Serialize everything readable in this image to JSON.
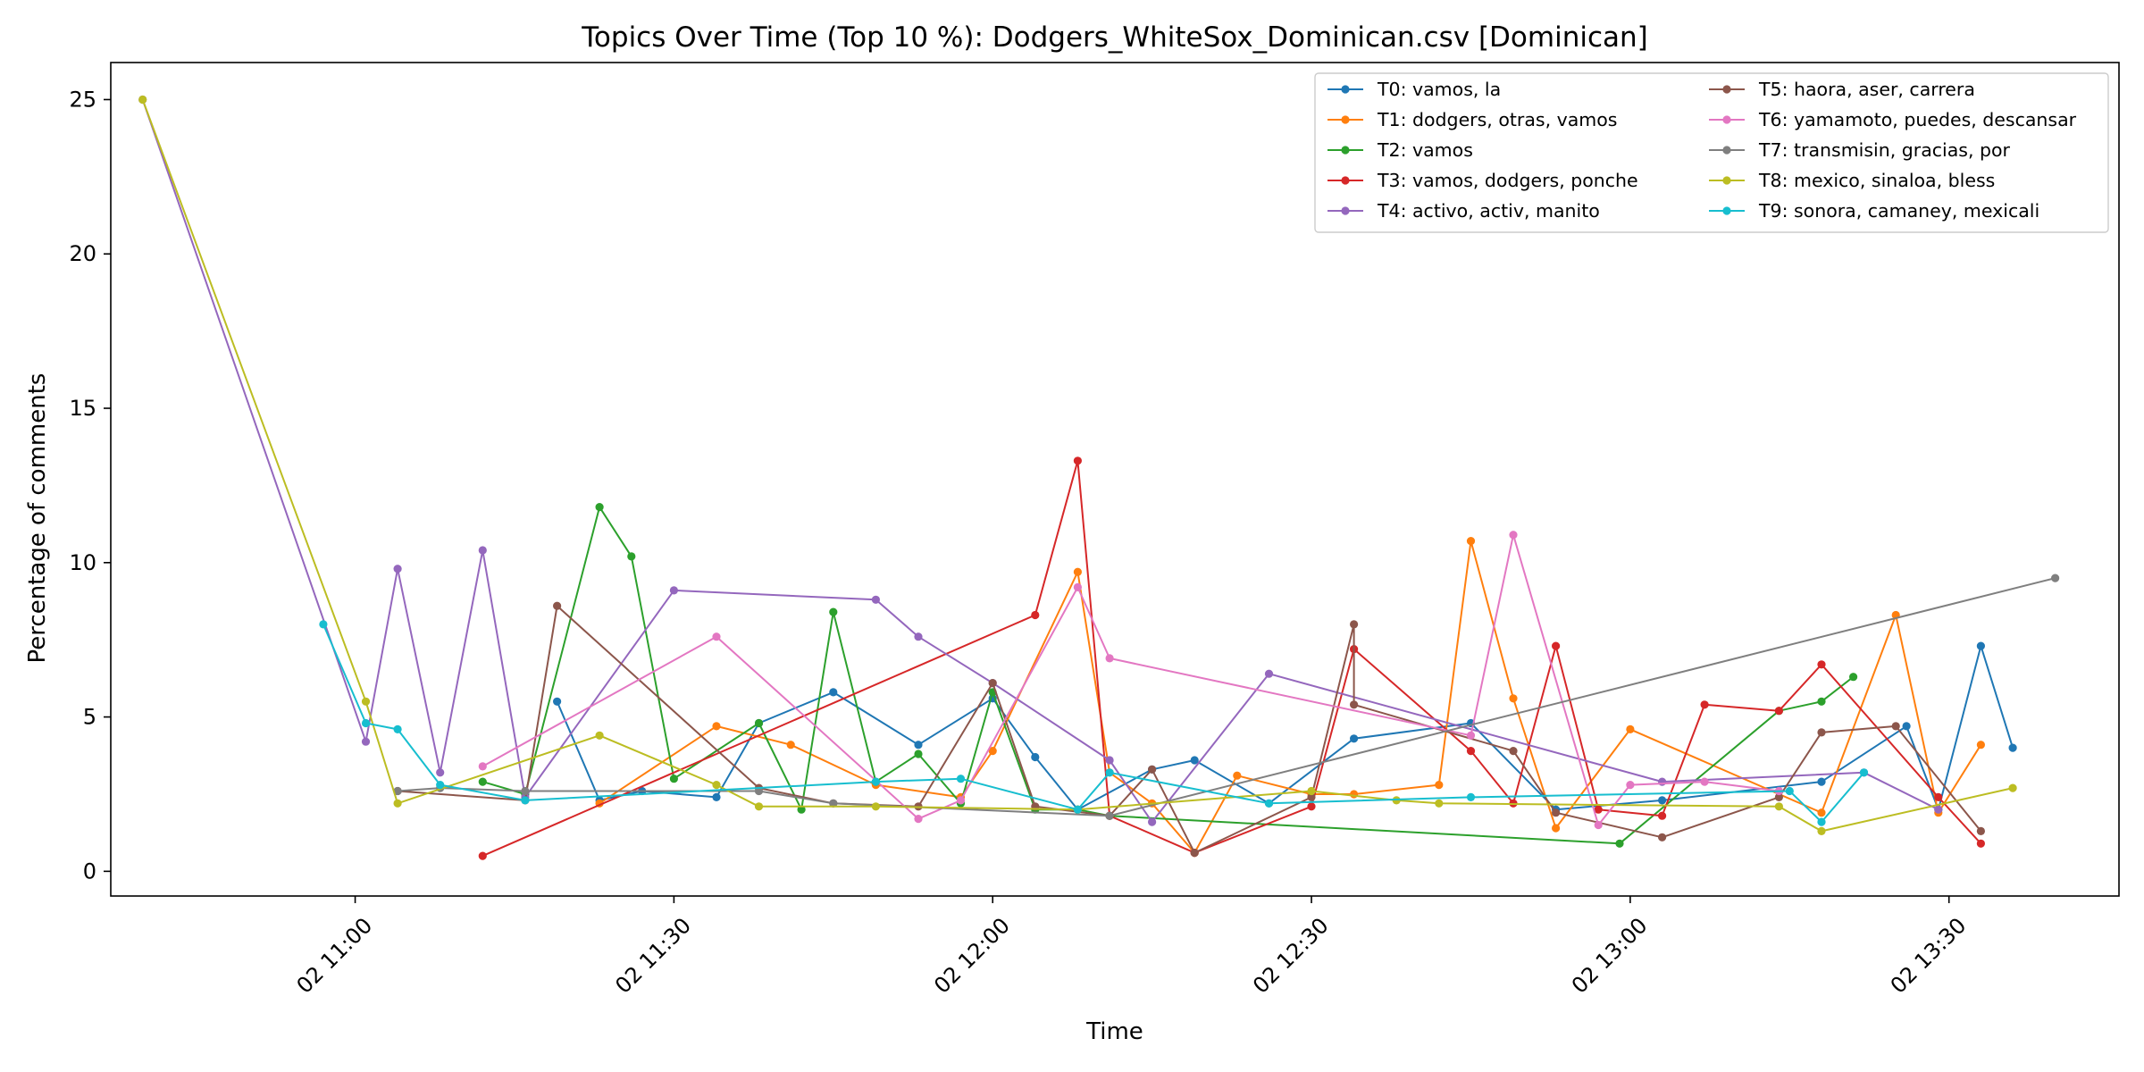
{
  "chart_data": {
    "type": "line",
    "title": "Topics Over Time (Top 10 %): Dodgers_WhiteSox_Dominican.csv [Dominican]",
    "xlabel": "Time",
    "ylabel": "Percentage of comments",
    "xlim": [
      "10:37",
      "13:46"
    ],
    "ylim": [
      -0.8,
      26.2
    ],
    "x_ticks": [
      {
        "t": "11:00",
        "label": "02 11:00"
      },
      {
        "t": "11:30",
        "label": "02 11:30"
      },
      {
        "t": "12:00",
        "label": "02 12:00"
      },
      {
        "t": "12:30",
        "label": "02 12:30"
      },
      {
        "t": "13:00",
        "label": "02 13:00"
      },
      {
        "t": "13:30",
        "label": "02 13:30"
      }
    ],
    "y_ticks": [
      0,
      5,
      10,
      15,
      20,
      25
    ],
    "grid": false,
    "legend": {
      "position": "top-right",
      "columns": 2
    },
    "series": [
      {
        "name": "T0: vamos, la",
        "color": "#1f77b4",
        "points": [
          [
            "11:19",
            5.5
          ],
          [
            "11:23",
            2.3
          ],
          [
            "11:27",
            2.6
          ],
          [
            "11:34",
            2.4
          ],
          [
            "11:38",
            4.8
          ],
          [
            "11:45",
            5.8
          ],
          [
            "11:53",
            4.1
          ],
          [
            "12:00",
            5.6
          ],
          [
            "12:04",
            3.7
          ],
          [
            "12:08",
            2.0
          ],
          [
            "12:15",
            3.3
          ],
          [
            "12:19",
            3.6
          ],
          [
            "12:26",
            2.2
          ],
          [
            "12:34",
            4.3
          ],
          [
            "12:45",
            4.8
          ],
          [
            "12:53",
            2.0
          ],
          [
            "13:03",
            2.3
          ],
          [
            "13:18",
            2.9
          ],
          [
            "13:26",
            4.7
          ],
          [
            "13:29",
            2.0
          ],
          [
            "13:33",
            7.3
          ],
          [
            "13:36",
            4.0
          ]
        ]
      },
      {
        "name": "T1: dodgers, otras, vamos",
        "color": "#ff7f0e",
        "points": [
          [
            "11:23",
            2.2
          ],
          [
            "11:34",
            4.7
          ],
          [
            "11:41",
            4.1
          ],
          [
            "11:49",
            2.8
          ],
          [
            "11:57",
            2.4
          ],
          [
            "12:00",
            3.9
          ],
          [
            "12:08",
            9.7
          ],
          [
            "12:11",
            3.2
          ],
          [
            "12:15",
            2.2
          ],
          [
            "12:19",
            0.6
          ],
          [
            "12:23",
            3.1
          ],
          [
            "12:30",
            2.5
          ],
          [
            "12:34",
            2.5
          ],
          [
            "12:42",
            2.8
          ],
          [
            "12:45",
            10.7
          ],
          [
            "12:49",
            5.6
          ],
          [
            "12:53",
            1.4
          ],
          [
            "13:00",
            4.6
          ],
          [
            "13:18",
            1.9
          ],
          [
            "13:25",
            8.3
          ],
          [
            "13:29",
            1.9
          ],
          [
            "13:33",
            4.1
          ]
        ]
      },
      {
        "name": "T2: vamos",
        "color": "#2ca02c",
        "points": [
          [
            "11:12",
            2.9
          ],
          [
            "11:16",
            2.5
          ],
          [
            "11:23",
            11.8
          ],
          [
            "11:26",
            10.2
          ],
          [
            "11:30",
            3.0
          ],
          [
            "11:38",
            4.8
          ],
          [
            "11:42",
            2.0
          ],
          [
            "11:45",
            8.4
          ],
          [
            "11:49",
            2.9
          ],
          [
            "11:53",
            3.8
          ],
          [
            "11:57",
            2.2
          ],
          [
            "12:00",
            5.8
          ],
          [
            "12:04",
            2.0
          ],
          [
            "12:08",
            2.0
          ],
          [
            "12:11",
            1.8
          ],
          [
            "12:59",
            0.9
          ],
          [
            "13:14",
            5.2
          ],
          [
            "13:18",
            5.5
          ],
          [
            "13:21",
            6.3
          ]
        ]
      },
      {
        "name": "T3: vamos, dodgers, ponche",
        "color": "#d62728",
        "points": [
          [
            "11:12",
            0.5
          ],
          [
            "12:04",
            8.3
          ],
          [
            "12:08",
            13.3
          ],
          [
            "12:11",
            1.8
          ],
          [
            "12:19",
            0.6
          ],
          [
            "12:30",
            2.1
          ],
          [
            "12:34",
            7.2
          ],
          [
            "12:45",
            3.9
          ],
          [
            "12:49",
            2.2
          ],
          [
            "12:53",
            7.3
          ],
          [
            "12:57",
            2.0
          ],
          [
            "13:03",
            1.8
          ],
          [
            "13:07",
            5.4
          ],
          [
            "13:14",
            5.2
          ],
          [
            "13:18",
            6.7
          ],
          [
            "13:29",
            2.4
          ],
          [
            "13:33",
            0.9
          ]
        ]
      },
      {
        "name": "T4: activo, activ, manito",
        "color": "#9467bd",
        "points": [
          [
            "10:40",
            25.0
          ],
          [
            "11:01",
            4.2
          ],
          [
            "11:04",
            9.8
          ],
          [
            "11:08",
            3.2
          ],
          [
            "11:12",
            10.4
          ],
          [
            "11:16",
            2.4
          ],
          [
            "11:30",
            9.1
          ],
          [
            "11:49",
            8.8
          ],
          [
            "11:53",
            7.6
          ],
          [
            "12:00",
            6.1
          ],
          [
            "12:11",
            3.6
          ],
          [
            "12:15",
            1.6
          ],
          [
            "12:26",
            6.4
          ],
          [
            "13:03",
            2.9
          ],
          [
            "13:22",
            3.2
          ],
          [
            "13:29",
            2.0
          ]
        ]
      },
      {
        "name": "T5: haora, aser, carrera",
        "color": "#8c564b",
        "points": [
          [
            "11:04",
            2.6
          ],
          [
            "11:16",
            2.3
          ],
          [
            "11:19",
            8.6
          ],
          [
            "11:38",
            2.7
          ],
          [
            "11:45",
            2.2
          ],
          [
            "11:53",
            2.1
          ],
          [
            "12:00",
            6.1
          ],
          [
            "12:04",
            2.1
          ],
          [
            "12:11",
            1.8
          ],
          [
            "12:15",
            3.3
          ],
          [
            "12:19",
            0.6
          ],
          [
            "12:30",
            2.4
          ],
          [
            "12:34",
            8.0
          ],
          [
            "12:34",
            5.4
          ],
          [
            "12:49",
            3.9
          ],
          [
            "12:53",
            1.9
          ],
          [
            "13:03",
            1.1
          ],
          [
            "13:14",
            2.4
          ],
          [
            "13:18",
            4.5
          ],
          [
            "13:25",
            4.7
          ],
          [
            "13:33",
            1.3
          ]
        ]
      },
      {
        "name": "T6: yamamoto, puedes, descansar",
        "color": "#e377c2",
        "points": [
          [
            "11:12",
            3.4
          ],
          [
            "11:34",
            7.6
          ],
          [
            "11:53",
            1.7
          ],
          [
            "11:57",
            2.3
          ],
          [
            "12:08",
            9.2
          ],
          [
            "12:11",
            6.9
          ],
          [
            "12:45",
            4.4
          ],
          [
            "12:49",
            10.9
          ],
          [
            "12:57",
            1.5
          ],
          [
            "13:00",
            2.8
          ],
          [
            "13:07",
            2.9
          ],
          [
            "13:14",
            2.6
          ]
        ]
      },
      {
        "name": "T7: transmisin, gracias, por",
        "color": "#7f7f7f",
        "points": [
          [
            "11:04",
            2.6
          ],
          [
            "11:08",
            2.7
          ],
          [
            "11:16",
            2.6
          ],
          [
            "11:38",
            2.6
          ],
          [
            "11:45",
            2.2
          ],
          [
            "12:11",
            1.8
          ],
          [
            "13:40",
            9.5
          ]
        ]
      },
      {
        "name": "T8: mexico, sinaloa, bless",
        "color": "#bcbd22",
        "points": [
          [
            "10:40",
            25.0
          ],
          [
            "11:01",
            5.5
          ],
          [
            "11:04",
            2.2
          ],
          [
            "11:23",
            4.4
          ],
          [
            "11:34",
            2.8
          ],
          [
            "11:38",
            2.1
          ],
          [
            "11:49",
            2.1
          ],
          [
            "12:08",
            2.0
          ],
          [
            "12:30",
            2.6
          ],
          [
            "12:38",
            2.3
          ],
          [
            "12:42",
            2.2
          ],
          [
            "13:14",
            2.1
          ],
          [
            "13:18",
            1.3
          ],
          [
            "13:36",
            2.7
          ]
        ]
      },
      {
        "name": "T9: sonora, camaney, mexicali",
        "color": "#17becf",
        "points": [
          [
            "10:57",
            8.0
          ],
          [
            "11:01",
            4.8
          ],
          [
            "11:04",
            4.6
          ],
          [
            "11:08",
            2.8
          ],
          [
            "11:16",
            2.3
          ],
          [
            "11:49",
            2.9
          ],
          [
            "11:57",
            3.0
          ],
          [
            "12:08",
            2.0
          ],
          [
            "12:11",
            3.2
          ],
          [
            "12:26",
            2.2
          ],
          [
            "12:45",
            2.4
          ],
          [
            "13:15",
            2.6
          ],
          [
            "13:18",
            1.6
          ],
          [
            "13:22",
            3.2
          ]
        ]
      }
    ]
  }
}
